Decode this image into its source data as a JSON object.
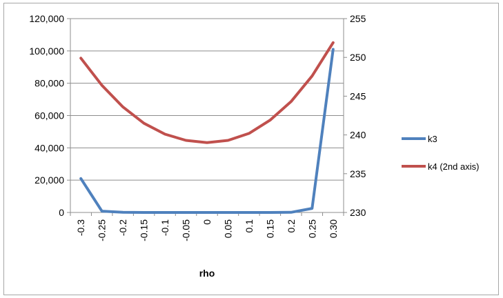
{
  "chart_data": {
    "type": "line",
    "title": "",
    "xlabel": "rho",
    "ylabel": "",
    "categories": [
      "-0.3",
      "-0.25",
      "-0.2",
      "-0.15",
      "-0.1",
      "-0.05",
      "0",
      "0.05",
      "0.1",
      "0.15",
      "0.2",
      "0.25",
      "0.30"
    ],
    "y_left": {
      "min": 0,
      "max": 120000,
      "step": 20000,
      "tick_labels": [
        "0",
        "20,000",
        "40,000",
        "60,000",
        "80,000",
        "100,000",
        "120,000"
      ]
    },
    "y_right": {
      "min": 230,
      "max": 255,
      "step": 5,
      "tick_labels": [
        "230",
        "235",
        "240",
        "245",
        "250",
        "255"
      ]
    },
    "gridlines": "horizontal",
    "legend_position": "right",
    "series": [
      {
        "name": "k3",
        "axis": "left",
        "color": "#4f81bd",
        "values": [
          21000,
          800,
          100,
          0,
          0,
          0,
          0,
          0,
          0,
          0,
          100,
          2500,
          101000
        ]
      },
      {
        "name": "k4 (2nd axis)",
        "axis": "right",
        "color": "#c0504d",
        "values": [
          249.9,
          246.4,
          243.6,
          241.5,
          240.1,
          239.3,
          239.0,
          239.3,
          240.2,
          241.9,
          244.3,
          247.6,
          251.9
        ]
      }
    ]
  }
}
